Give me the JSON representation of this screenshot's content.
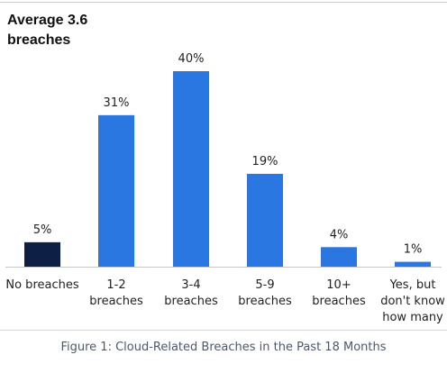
{
  "chart_data": {
    "type": "bar",
    "title": "Average 3.6 breaches",
    "categories": [
      [
        "No breaches"
      ],
      [
        "1-2",
        "breaches"
      ],
      [
        "3-4",
        "breaches"
      ],
      [
        "5-9",
        "breaches"
      ],
      [
        "10+",
        "breaches"
      ],
      [
        "Yes, but",
        "don't know",
        "how many"
      ]
    ],
    "values": [
      5,
      31,
      40,
      19,
      4,
      1
    ],
    "value_labels": [
      "5%",
      "31%",
      "40%",
      "19%",
      "4%",
      "1%"
    ],
    "unit": "%",
    "ylim": [
      0,
      40
    ],
    "grid": false,
    "legend": "none",
    "colors": {
      "bars": [
        "#0d1f45",
        "#2a77e1",
        "#2a77e1",
        "#2a77e1",
        "#2a77e1",
        "#2a77e1"
      ],
      "baseline": "#c8c8c8",
      "label_text": "#222222"
    }
  },
  "caption": "Figure 1: Cloud-Related Breaches in the Past 18 Months"
}
